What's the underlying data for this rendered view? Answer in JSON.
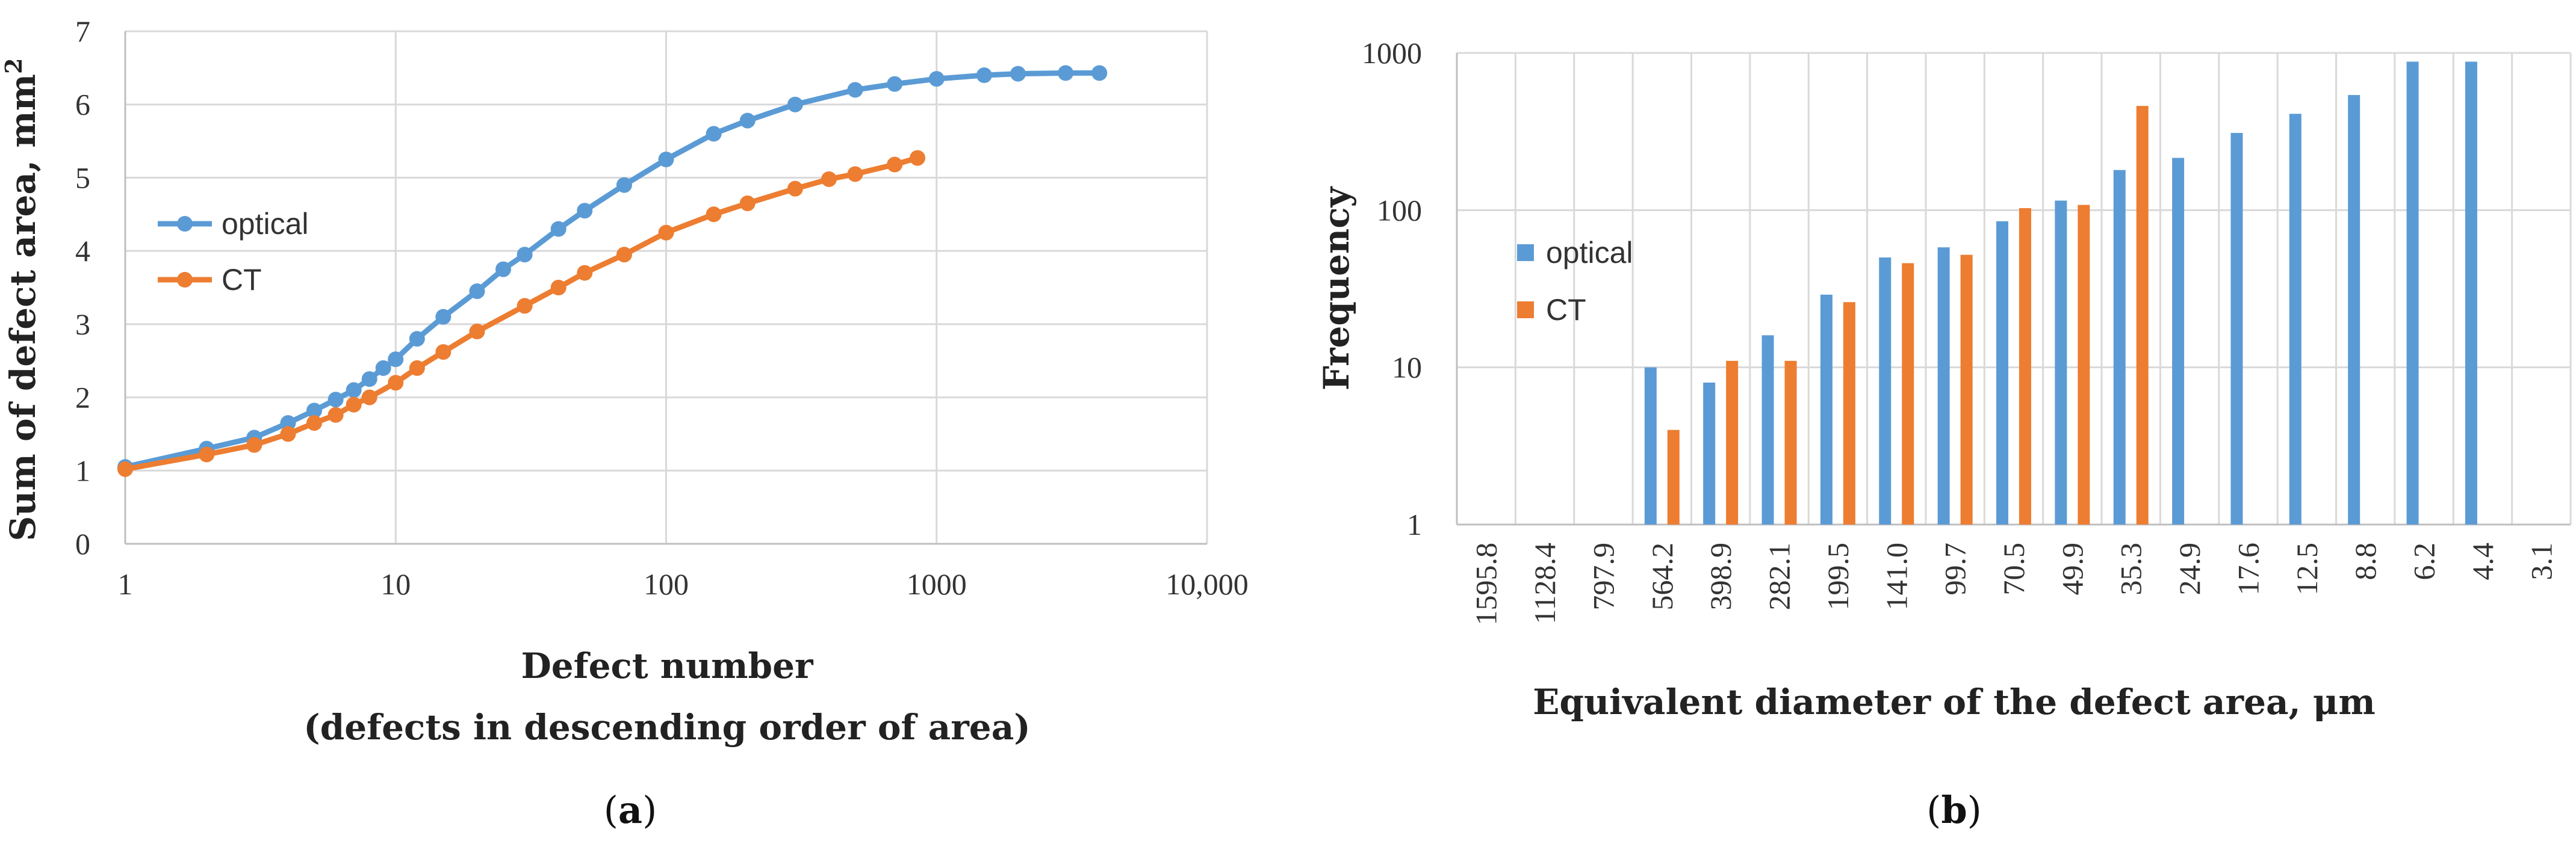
{
  "colors": {
    "optical": "#5B9BD5",
    "ct": "#ED7D31",
    "grid": "#D9D9D9",
    "axis": "#BFBFBF"
  },
  "chart_data": [
    {
      "type": "line",
      "panel_label": "a",
      "xscale": "log",
      "xlabel": "Defect number",
      "xlabel_line2": "(defects in descending order of area)",
      "ylabel": "Sum of defect area, mm",
      "ylabel_sup": "2",
      "xlim": [
        1,
        10000
      ],
      "ylim": [
        0,
        7
      ],
      "x_ticks": [
        1,
        10,
        100,
        1000,
        10000
      ],
      "x_tick_labels": [
        "1",
        "10",
        "100",
        "1000",
        "10,000"
      ],
      "y_ticks": [
        0,
        1,
        2,
        3,
        4,
        5,
        6,
        7
      ],
      "y_tick_labels": [
        "0",
        "1",
        "2",
        "3",
        "4",
        "5",
        "6",
        "7"
      ],
      "legend": [
        "optical",
        "CT"
      ],
      "legend_position": "left-middle",
      "series": [
        {
          "name": "optical",
          "x": [
            1,
            2,
            3,
            4,
            5,
            6,
            7,
            8,
            9,
            10,
            12,
            15,
            20,
            25,
            30,
            40,
            50,
            70,
            100,
            150,
            200,
            300,
            500,
            700,
            1000,
            1500,
            2000,
            3000,
            4000
          ],
          "y": [
            1.05,
            1.3,
            1.45,
            1.65,
            1.82,
            1.97,
            2.1,
            2.25,
            2.4,
            2.52,
            2.8,
            3.1,
            3.45,
            3.75,
            3.95,
            4.3,
            4.55,
            4.9,
            5.25,
            5.6,
            5.78,
            6.0,
            6.2,
            6.28,
            6.35,
            6.4,
            6.42,
            6.43,
            6.43
          ]
        },
        {
          "name": "CT",
          "x": [
            1,
            2,
            3,
            4,
            5,
            6,
            7,
            8,
            10,
            12,
            15,
            20,
            30,
            40,
            50,
            70,
            100,
            150,
            200,
            300,
            400,
            500,
            700,
            850
          ],
          "y": [
            1.02,
            1.22,
            1.35,
            1.5,
            1.65,
            1.76,
            1.9,
            2.0,
            2.2,
            2.4,
            2.62,
            2.9,
            3.25,
            3.5,
            3.7,
            3.95,
            4.25,
            4.5,
            4.65,
            4.85,
            4.98,
            5.05,
            5.18,
            5.27
          ]
        }
      ]
    },
    {
      "type": "bar",
      "panel_label": "b",
      "yscale": "log",
      "xlabel": "Equivalent diameter of the defect area, μm",
      "ylabel": "Frequency",
      "ylim": [
        1,
        1000
      ],
      "y_ticks": [
        1,
        10,
        100,
        1000
      ],
      "y_tick_labels": [
        "1",
        "10",
        "100",
        "1000"
      ],
      "legend": [
        "optical",
        "CT"
      ],
      "legend_position": "left-middle",
      "categories": [
        "1595.8",
        "1128.4",
        "797.9",
        "564.2",
        "398.9",
        "282.1",
        "199.5",
        "141.0",
        "99.7",
        "70.5",
        "49.9",
        "35.3",
        "24.9",
        "17.6",
        "12.5",
        "8.8",
        "6.2",
        "4.4",
        "3.1"
      ],
      "series": [
        {
          "name": "optical",
          "values": [
            null,
            null,
            null,
            10,
            8,
            16,
            29,
            50,
            58,
            85,
            115,
            180,
            215,
            310,
            410,
            540,
            880,
            880,
            null
          ]
        },
        {
          "name": "CT",
          "values": [
            null,
            null,
            null,
            4,
            11,
            11,
            26,
            46,
            52,
            103,
            108,
            460,
            null,
            null,
            null,
            null,
            null,
            null,
            null
          ]
        }
      ]
    }
  ]
}
